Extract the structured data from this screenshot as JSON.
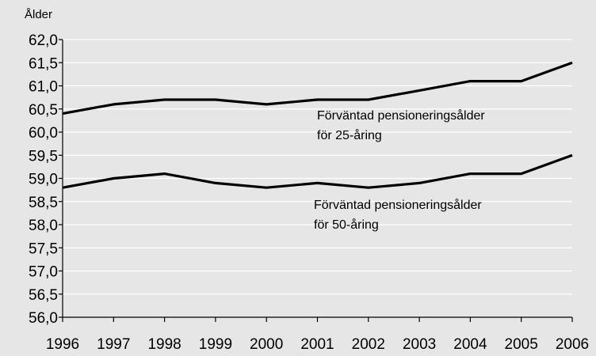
{
  "chart_data": {
    "type": "line",
    "ylabel": "Ålder",
    "xlabel": "",
    "title": "",
    "x": [
      "1996",
      "1997",
      "1998",
      "1999",
      "2000",
      "2001",
      "2002",
      "2003",
      "2004",
      "2005",
      "2006"
    ],
    "ylim": [
      56.0,
      62.0
    ],
    "yticks": [
      "56,0",
      "56,5",
      "57,0",
      "57,5",
      "58,0",
      "58,5",
      "59,0",
      "59,5",
      "60,0",
      "60,5",
      "61,0",
      "61,5",
      "62,0"
    ],
    "grid": true,
    "series": [
      {
        "values": [
          60.4,
          60.6,
          60.7,
          60.7,
          60.6,
          60.7,
          60.7,
          60.9,
          61.1,
          61.1,
          61.5
        ]
      },
      {
        "values": [
          58.8,
          59.0,
          59.1,
          58.9,
          58.8,
          58.9,
          58.8,
          58.9,
          59.1,
          59.1,
          59.5
        ]
      }
    ],
    "annotations": [
      {
        "line1": "Förväntad pensioneringsålder",
        "line2": "för 25-åring"
      },
      {
        "line1": "Förväntad pensioneringsålder",
        "line2": "för 50-åring"
      }
    ]
  }
}
